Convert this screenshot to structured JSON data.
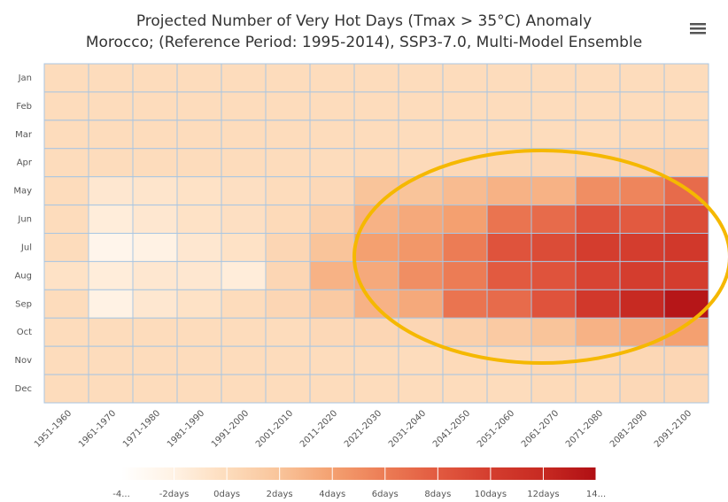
{
  "chart_data": {
    "type": "heatmap",
    "title": "Projected Number of Very Hot Days (Tmax > 35°C) Anomaly",
    "subtitle": "Morocco; (Reference Period: 1995-2014), SSP3-7.0, Multi-Model Ensemble",
    "x": [
      "1951-1960",
      "1961-1970",
      "1971-1980",
      "1981-1990",
      "1991-2000",
      "2001-2010",
      "2011-2020",
      "2021-2030",
      "2031-2040",
      "2041-2050",
      "2051-2060",
      "2061-2070",
      "2071-2080",
      "2081-2090",
      "2091-2100"
    ],
    "y": [
      "Jan",
      "Feb",
      "Mar",
      "Apr",
      "May",
      "Jun",
      "Jul",
      "Aug",
      "Sep",
      "Oct",
      "Nov",
      "Dec"
    ],
    "values": [
      [
        0,
        0,
        0,
        0,
        0,
        0,
        0,
        0,
        0,
        0,
        0,
        0,
        0,
        0,
        0
      ],
      [
        0,
        0,
        0,
        0,
        0,
        0,
        0,
        0,
        0,
        0,
        0,
        0,
        0,
        0,
        0
      ],
      [
        0,
        0,
        0,
        0,
        0,
        0,
        0,
        0,
        0,
        0,
        0,
        0,
        0,
        0.2,
        0.2
      ],
      [
        0,
        0,
        0,
        0,
        0,
        0,
        0,
        0.2,
        0.2,
        0.3,
        0.4,
        0.5,
        0.6,
        0.8,
        1
      ],
      [
        0,
        -1,
        -0.8,
        -0.5,
        -0.3,
        0,
        0.3,
        2,
        2,
        2.5,
        3,
        3,
        5,
        5.5,
        7
      ],
      [
        0,
        -1.5,
        -1,
        -0.5,
        -0.3,
        0.2,
        1,
        3,
        3.5,
        4,
        6.5,
        7,
        8.5,
        8,
        9
      ],
      [
        0,
        -2.5,
        -2,
        -1,
        -0.5,
        0.5,
        2,
        4,
        4.5,
        6,
        8.5,
        9,
        10,
        10,
        10.5
      ],
      [
        -0.5,
        -1.5,
        -1,
        -1,
        -1.5,
        0.5,
        3,
        3.5,
        5,
        6,
        8,
        8.5,
        9.5,
        10,
        10
      ],
      [
        0,
        -2,
        -1,
        -0.5,
        0,
        0.5,
        1.5,
        3,
        3.5,
        6.5,
        7,
        8.5,
        10.5,
        12,
        13.5
      ],
      [
        0,
        0,
        0,
        0,
        0,
        0,
        0.3,
        0.5,
        0.5,
        1,
        1.5,
        2,
        3,
        3.5,
        4
      ],
      [
        0,
        0,
        0,
        0,
        0,
        0,
        0,
        0,
        0,
        0.2,
        0.2,
        0.3,
        0.3,
        0.4,
        0.5
      ],
      [
        0,
        0,
        0,
        0,
        0,
        0,
        0,
        0,
        0,
        0,
        0,
        0.2,
        0.2,
        0.3,
        0.3
      ]
    ],
    "colorlim": [
      -4,
      14
    ],
    "colorscale": [
      "#ffffff",
      "#fff2e4",
      "#fddcbc",
      "#f9c49a",
      "#f4a070",
      "#ec7c55",
      "#e25a40",
      "#d43d2e",
      "#c72a22",
      "#b00f14"
    ],
    "colorticks": [
      {
        "value": -4,
        "label": "-4..."
      },
      {
        "value": -2,
        "label": "-2days"
      },
      {
        "value": 0,
        "label": "0days"
      },
      {
        "value": 2,
        "label": "2days"
      },
      {
        "value": 4,
        "label": "4days"
      },
      {
        "value": 6,
        "label": "6days"
      },
      {
        "value": 8,
        "label": "8days"
      },
      {
        "value": 10,
        "label": "10days"
      },
      {
        "value": 12,
        "label": "12days"
      },
      {
        "value": 14,
        "label": "14..."
      }
    ],
    "gridcolor": "#a9c6e2"
  }
}
